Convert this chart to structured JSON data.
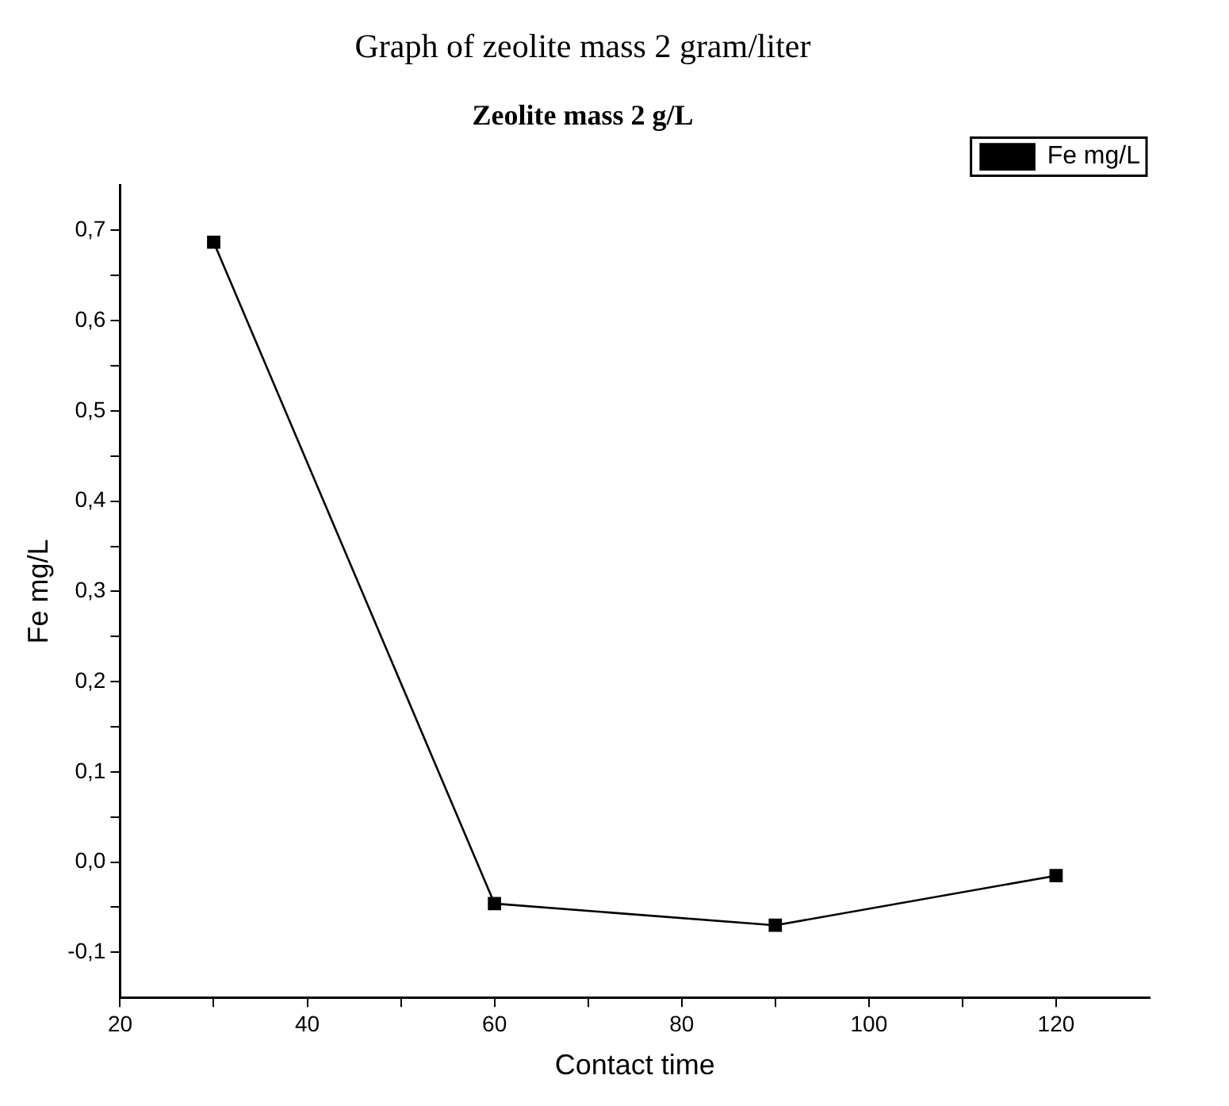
{
  "chart_data": {
    "type": "line",
    "title": "Graph of zeolite mass 2 gram/liter",
    "subtitle": "Zeolite mass 2 g/L",
    "xlabel": "Contact time",
    "ylabel": "Fe mg/L",
    "x": [
      30,
      60,
      90,
      120
    ],
    "series": [
      {
        "name": "Fe mg/L",
        "color": "#000000",
        "values": [
          0.687,
          -0.046,
          -0.07,
          -0.015
        ]
      }
    ],
    "xlim": [
      20,
      130
    ],
    "xticks": [
      20,
      {
        "value": 30,
        "label": null
      },
      40,
      {
        "value": 50,
        "label": null
      },
      60,
      {
        "value": 70,
        "label": null
      },
      80,
      {
        "value": 90,
        "label": null
      },
      100,
      {
        "value": 110,
        "label": null
      },
      120
    ],
    "ylim": [
      -0.15,
      0.75
    ],
    "yticks": [
      {
        "value": -0.1,
        "label": "-0,1"
      },
      {
        "value": -0.05,
        "label": null
      },
      {
        "value": 0,
        "label": "0,0"
      },
      {
        "value": 0.05,
        "label": null
      },
      {
        "value": 0.1,
        "label": "0,1"
      },
      {
        "value": 0.15,
        "label": null
      },
      {
        "value": 0.2,
        "label": "0,2"
      },
      {
        "value": 0.25,
        "label": null
      },
      {
        "value": 0.3,
        "label": "0,3"
      },
      {
        "value": 0.35,
        "label": null
      },
      {
        "value": 0.4,
        "label": "0,4"
      },
      {
        "value": 0.45,
        "label": null
      },
      {
        "value": 0.5,
        "label": "0,5"
      },
      {
        "value": 0.55,
        "label": null
      },
      {
        "value": 0.6,
        "label": "0,6"
      },
      {
        "value": 0.65,
        "label": null
      },
      {
        "value": 0.7,
        "label": "0,7"
      }
    ],
    "grid": false,
    "legend": "top right",
    "marker": "square",
    "line_style": "solid"
  }
}
